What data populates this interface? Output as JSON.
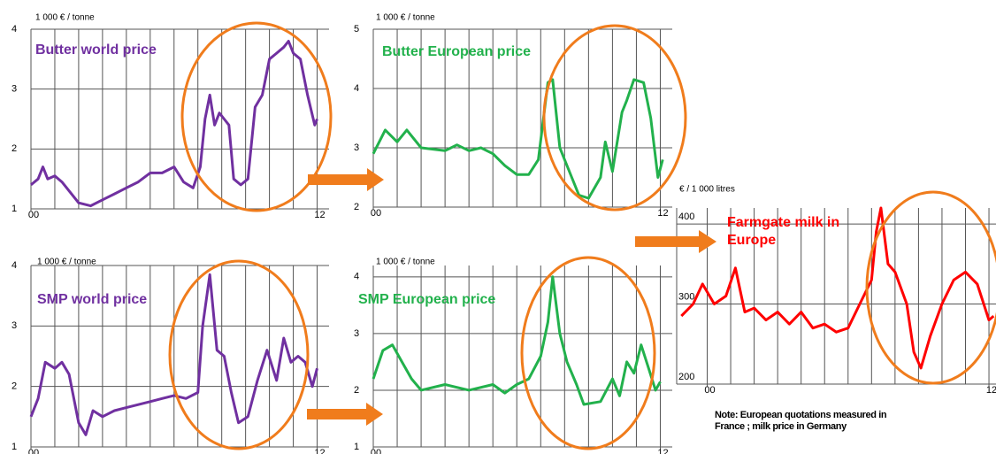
{
  "chart_data": [
    {
      "type": "line",
      "y_label": "1 000 € / tonne",
      "x": [
        0,
        0.3,
        0.5,
        0.7,
        1,
        1.3,
        1.6,
        2,
        2.5,
        3,
        3.5,
        4,
        4.5,
        5,
        5.5,
        6,
        6.4,
        6.8,
        7.1,
        7.3,
        7.5,
        7.7,
        7.9,
        8.1,
        8.3,
        8.5,
        8.8,
        9.1,
        9.4,
        9.7,
        10,
        10.3,
        10.6,
        10.8,
        11,
        11.3,
        11.6,
        11.9,
        12
      ],
      "series": [
        {
          "name": "Butter world price",
          "color": "#7030a0",
          "values": [
            1.4,
            1.5,
            1.7,
            1.5,
            1.55,
            1.45,
            1.3,
            1.1,
            1.05,
            1.15,
            1.25,
            1.35,
            1.45,
            1.6,
            1.6,
            1.7,
            1.45,
            1.35,
            1.7,
            2.5,
            2.9,
            2.4,
            2.6,
            2.5,
            2.4,
            1.5,
            1.4,
            1.5,
            2.7,
            2.9,
            3.5,
            3.6,
            3.7,
            3.8,
            3.6,
            3.5,
            2.9,
            2.4,
            2.5
          ]
        }
      ],
      "xlim": [
        0,
        12.5
      ],
      "xticks": [
        {
          "value": 0,
          "label": "00"
        },
        {
          "value": 12,
          "label": "12"
        }
      ],
      "xgrid": [
        1,
        2,
        3,
        4,
        5,
        6,
        7,
        8,
        9,
        10,
        11,
        12
      ],
      "ylim": [
        1,
        4
      ],
      "yticks": [
        1,
        2,
        3,
        4
      ]
    },
    {
      "type": "line",
      "y_label": "1 000 € / tonne",
      "x": [
        0,
        0.5,
        1,
        1.4,
        2,
        3,
        3.5,
        4,
        4.5,
        5,
        5.5,
        6,
        6.5,
        6.9,
        7.3,
        7.5,
        7.8,
        8.3,
        8.6,
        9,
        9.5,
        9.7,
        10,
        10.4,
        10.6,
        10.9,
        11.3,
        11.6,
        11.9,
        12.1
      ],
      "series": [
        {
          "name": "Butter European price",
          "color": "#22b14c",
          "values": [
            2.9,
            3.3,
            3.1,
            3.3,
            3.0,
            2.95,
            3.05,
            2.95,
            3.0,
            2.9,
            2.7,
            2.55,
            2.55,
            2.8,
            4.1,
            4.15,
            3.0,
            2.5,
            2.2,
            2.15,
            2.5,
            3.1,
            2.6,
            3.6,
            3.8,
            4.15,
            4.1,
            3.5,
            2.5,
            2.8
          ]
        }
      ],
      "xlim": [
        0,
        12.5
      ],
      "xticks": [
        {
          "value": 0,
          "label": "00"
        },
        {
          "value": 12,
          "label": "12"
        }
      ],
      "xgrid": [
        1,
        2,
        3,
        4,
        5,
        6,
        7,
        8,
        9,
        10,
        11,
        12
      ],
      "ylim": [
        2,
        5
      ],
      "yticks": [
        2,
        3,
        4,
        5
      ]
    },
    {
      "type": "line",
      "y_label": "1 000 € / tonne",
      "x": [
        0,
        0.3,
        0.6,
        1,
        1.3,
        1.6,
        2,
        2.3,
        2.6,
        3,
        3.5,
        4,
        4.5,
        5,
        5.5,
        6,
        6.5,
        7,
        7.2,
        7.5,
        7.8,
        8.1,
        8.4,
        8.7,
        9.1,
        9.5,
        9.9,
        10.3,
        10.6,
        10.9,
        11.2,
        11.5,
        11.8,
        12
      ],
      "series": [
        {
          "name": "SMP world price",
          "color": "#7030a0",
          "values": [
            1.5,
            1.8,
            2.4,
            2.3,
            2.4,
            2.2,
            1.4,
            1.2,
            1.6,
            1.5,
            1.6,
            1.65,
            1.7,
            1.75,
            1.8,
            1.85,
            1.8,
            1.9,
            3.0,
            3.85,
            2.6,
            2.5,
            1.9,
            1.4,
            1.5,
            2.1,
            2.6,
            2.1,
            2.8,
            2.4,
            2.5,
            2.4,
            2.0,
            2.3
          ]
        }
      ],
      "xlim": [
        0,
        12.5
      ],
      "xticks": [
        {
          "value": 0,
          "label": "00"
        },
        {
          "value": 12,
          "label": "12"
        }
      ],
      "xgrid": [
        1,
        2,
        3,
        4,
        5,
        6,
        7,
        8,
        9,
        10,
        11,
        12
      ],
      "ylim": [
        1,
        4
      ],
      "yticks": [
        1,
        2,
        3,
        4
      ]
    },
    {
      "type": "line",
      "y_label": "1 000 € / tonne",
      "x": [
        0,
        0.4,
        0.8,
        1.2,
        1.6,
        2,
        3,
        4,
        5,
        5.5,
        6,
        6.5,
        7,
        7.3,
        7.5,
        7.8,
        8.1,
        8.5,
        8.8,
        9.5,
        10,
        10.3,
        10.6,
        10.9,
        11.2,
        11.5,
        11.8,
        12
      ],
      "series": [
        {
          "name": "SMP European price",
          "color": "#22b14c",
          "values": [
            2.2,
            2.7,
            2.8,
            2.5,
            2.2,
            2.0,
            2.1,
            2.0,
            2.1,
            1.95,
            2.1,
            2.2,
            2.6,
            3.2,
            4.0,
            3.0,
            2.5,
            2.1,
            1.75,
            1.8,
            2.2,
            1.9,
            2.5,
            2.3,
            2.8,
            2.4,
            2.0,
            2.15
          ]
        }
      ],
      "xlim": [
        0,
        12.5
      ],
      "xticks": [
        {
          "value": 0,
          "label": "00"
        },
        {
          "value": 12,
          "label": "12"
        }
      ],
      "xgrid": [
        1,
        2,
        3,
        4,
        5,
        6,
        7,
        8,
        9,
        10,
        11,
        12
      ],
      "ylim": [
        1,
        4.2
      ],
      "yticks": [
        1,
        2,
        3,
        4
      ]
    },
    {
      "type": "line",
      "y_label": "€ / 1 000 litres",
      "x": [
        -1.1,
        -0.6,
        -0.2,
        0.3,
        0.8,
        1.2,
        1.6,
        2,
        2.5,
        3,
        3.5,
        4,
        4.5,
        5,
        5.5,
        6,
        6.5,
        7,
        7.2,
        7.4,
        7.7,
        8,
        8.5,
        8.8,
        9.1,
        9.5,
        10,
        10.5,
        11,
        11.5,
        12,
        12.2
      ],
      "series": [
        {
          "name": "Farmgate milk in Europe",
          "color": "#ff0000",
          "values": [
            285,
            300,
            325,
            300,
            310,
            345,
            290,
            295,
            280,
            290,
            275,
            290,
            270,
            275,
            265,
            270,
            300,
            330,
            390,
            420,
            350,
            340,
            300,
            240,
            220,
            260,
            300,
            330,
            340,
            325,
            280,
            285
          ]
        }
      ],
      "xlim": [
        -1.3,
        12.3
      ],
      "xticks": [
        {
          "value": 0,
          "label": "00"
        },
        {
          "value": 12,
          "label": "12"
        }
      ],
      "xgrid": [
        0,
        1,
        2,
        3,
        4,
        5,
        6,
        7,
        8,
        9,
        10,
        11,
        12
      ],
      "ylim": [
        200,
        420
      ],
      "yticks": [
        200,
        300,
        400
      ],
      "note": [
        "Note: European quotations measured in",
        "France ; milk price in Germany"
      ]
    }
  ]
}
